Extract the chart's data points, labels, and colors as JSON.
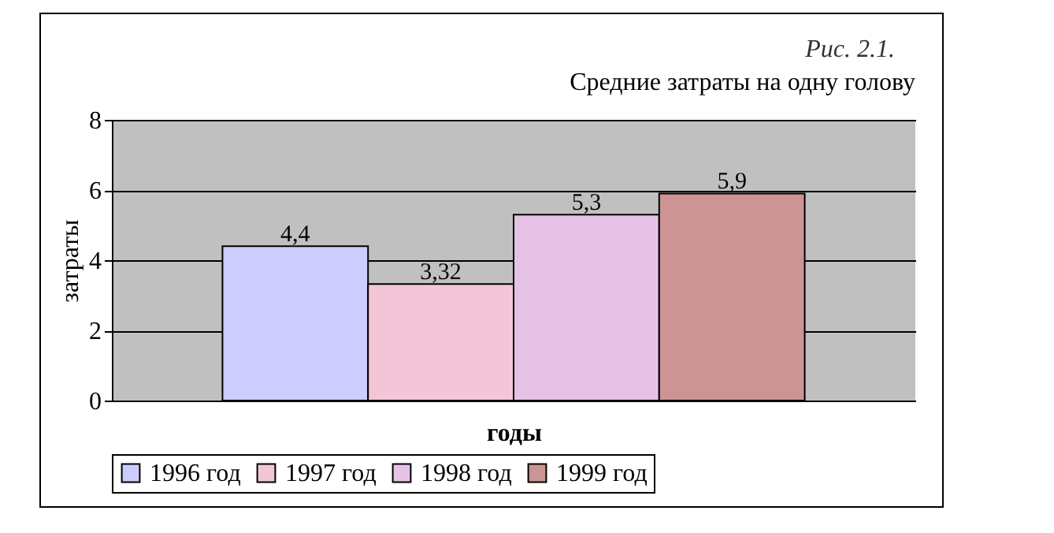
{
  "chart_data": {
    "type": "bar",
    "title": "Средние затраты на одну голову",
    "annotations": [
      "Рис. 2.1."
    ],
    "xlabel": "годы",
    "ylabel": "затраты",
    "categories": [
      null
    ],
    "series": [
      {
        "name": "1996 год",
        "color": "#ccccff",
        "values": [
          4.4
        ],
        "value_labels": [
          "4,4"
        ]
      },
      {
        "name": "1997 год",
        "color": "#f2c6d6",
        "values": [
          3.32
        ],
        "value_labels": [
          "3,32"
        ]
      },
      {
        "name": "1998 год",
        "color": "#e6c2e6",
        "values": [
          5.3
        ],
        "value_labels": [
          "5,3"
        ]
      },
      {
        "name": "1999 год",
        "color": "#cc9494",
        "values": [
          5.9
        ],
        "value_labels": [
          "5,9"
        ]
      }
    ],
    "ylim": [
      0,
      8
    ],
    "yticks": [
      0,
      2,
      4,
      6,
      8
    ],
    "grid": "y",
    "legend": "bottom"
  }
}
